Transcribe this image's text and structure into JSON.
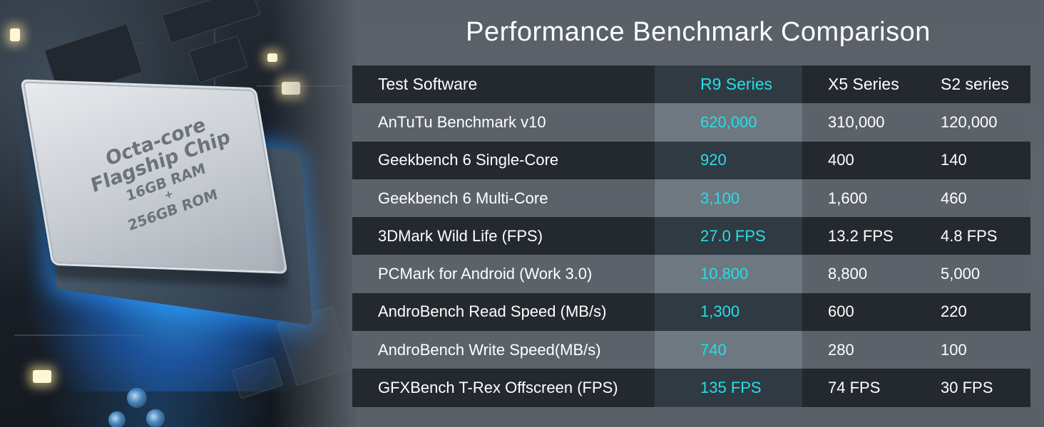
{
  "title": "Performance Benchmark Comparison",
  "chip": {
    "line1": "Octa-core",
    "line2": "Flagship Chip",
    "line3": "16GB RAM",
    "line4": "+",
    "line5": "256GB ROM"
  },
  "table": {
    "headers": [
      "Test Software",
      "R9 Series",
      "X5 Series",
      "S2 series"
    ],
    "rows": [
      [
        "AnTuTu Benchmark v10",
        "620,000",
        "310,000",
        "120,000"
      ],
      [
        "Geekbench 6 Single-Core",
        "920",
        "400",
        "140"
      ],
      [
        "Geekbench 6 Multi-Core",
        "3,100",
        "1,600",
        "460"
      ],
      [
        "3DMark Wild Life (FPS)",
        "27.0 FPS",
        "13.2 FPS",
        "4.8 FPS"
      ],
      [
        "PCMark for Android (Work 3.0)",
        "10,800",
        "8,800",
        "5,000"
      ],
      [
        "AndroBench Read Speed (MB/s)",
        "1,300",
        "600",
        "220"
      ],
      [
        "AndroBench Write Speed(MB/s)",
        "740",
        "280",
        "100"
      ],
      [
        "GFXBench T-Rex Offscreen (FPS)",
        "135 FPS",
        "74 FPS",
        "30 FPS"
      ]
    ]
  },
  "colors": {
    "highlight": "#25dfe8",
    "dark_row": "#23292f",
    "light_row": "#5c6269",
    "background": "#5e646c"
  }
}
